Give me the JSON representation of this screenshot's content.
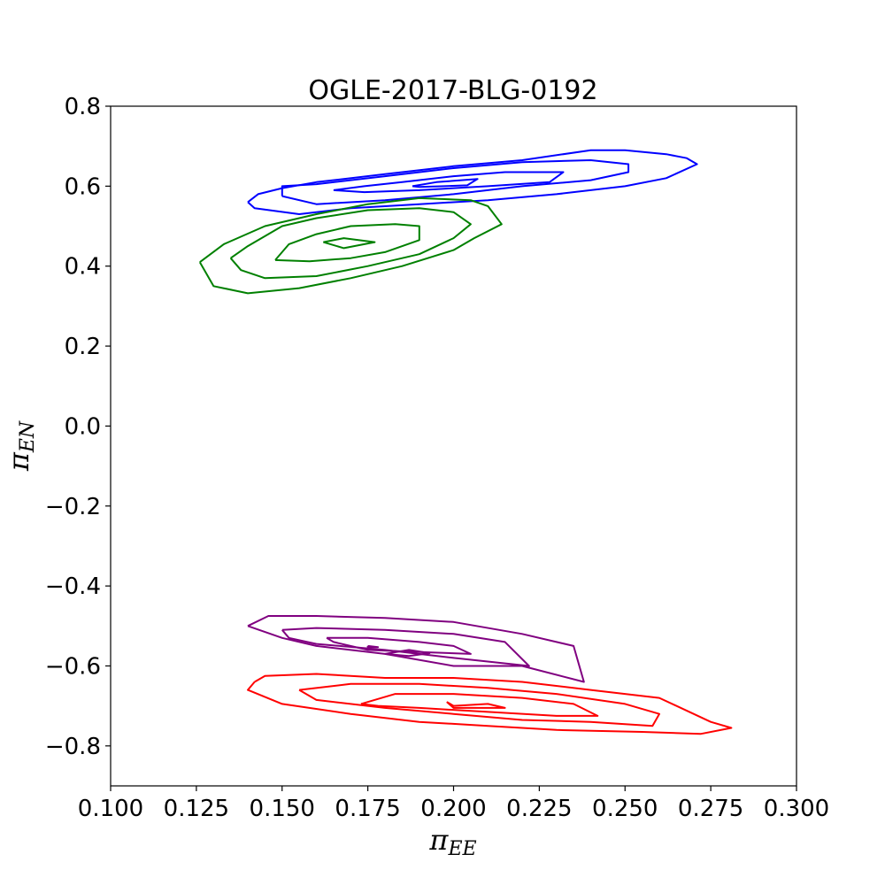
{
  "chart_data": {
    "type": "contour",
    "title": "OGLE-2017-BLG-0192",
    "xlabel": {
      "base": "π",
      "sub": "EE"
    },
    "ylabel": {
      "base": "π",
      "sub": "EN"
    },
    "xlim": [
      0.1,
      0.3
    ],
    "ylim": [
      -0.9,
      0.8
    ],
    "x_ticks": [
      0.1,
      0.125,
      0.15,
      0.175,
      0.2,
      0.225,
      0.25,
      0.275,
      0.3
    ],
    "x_tick_labels": [
      "0.100",
      "0.125",
      "0.150",
      "0.175",
      "0.200",
      "0.225",
      "0.250",
      "0.275",
      "0.300"
    ],
    "y_ticks": [
      -0.8,
      -0.6,
      -0.4,
      -0.2,
      0.0,
      0.2,
      0.4,
      0.6,
      0.8
    ],
    "y_tick_labels": [
      "−0.8",
      "−0.6",
      "−0.4",
      "−0.2",
      "0.0",
      "0.2",
      "0.4",
      "0.6",
      "0.8"
    ],
    "grid": false,
    "series": [
      {
        "color": "#0000ff",
        "contours": [
          [
            [
              0.14,
              0.56
            ],
            [
              0.143,
              0.58
            ],
            [
              0.15,
              0.595
            ],
            [
              0.16,
              0.61
            ],
            [
              0.18,
              0.63
            ],
            [
              0.2,
              0.65
            ],
            [
              0.22,
              0.665
            ],
            [
              0.24,
              0.69
            ],
            [
              0.25,
              0.69
            ],
            [
              0.262,
              0.68
            ],
            [
              0.268,
              0.67
            ],
            [
              0.271,
              0.655
            ],
            [
              0.262,
              0.62
            ],
            [
              0.25,
              0.6
            ],
            [
              0.23,
              0.58
            ],
            [
              0.21,
              0.565
            ],
            [
              0.19,
              0.555
            ],
            [
              0.17,
              0.545
            ],
            [
              0.155,
              0.53
            ],
            [
              0.142,
              0.545
            ],
            [
              0.14,
              0.56
            ]
          ],
          [
            [
              0.15,
              0.575
            ],
            [
              0.15,
              0.6
            ],
            [
              0.16,
              0.605
            ],
            [
              0.18,
              0.625
            ],
            [
              0.2,
              0.645
            ],
            [
              0.22,
              0.66
            ],
            [
              0.24,
              0.665
            ],
            [
              0.251,
              0.655
            ],
            [
              0.251,
              0.635
            ],
            [
              0.24,
              0.615
            ],
            [
              0.22,
              0.6
            ],
            [
              0.2,
              0.58
            ],
            [
              0.18,
              0.565
            ],
            [
              0.16,
              0.555
            ],
            [
              0.15,
              0.575
            ]
          ],
          [
            [
              0.165,
              0.59
            ],
            [
              0.174,
              0.6
            ],
            [
              0.185,
              0.61
            ],
            [
              0.2,
              0.625
            ],
            [
              0.215,
              0.635
            ],
            [
              0.232,
              0.635
            ],
            [
              0.228,
              0.61
            ],
            [
              0.21,
              0.6
            ],
            [
              0.19,
              0.59
            ],
            [
              0.174,
              0.585
            ],
            [
              0.165,
              0.59
            ]
          ],
          [
            [
              0.188,
              0.6
            ],
            [
              0.195,
              0.61
            ],
            [
              0.207,
              0.618
            ],
            [
              0.204,
              0.602
            ],
            [
              0.19,
              0.598
            ],
            [
              0.188,
              0.6
            ]
          ]
        ]
      },
      {
        "color": "#008000",
        "contours": [
          [
            [
              0.126,
              0.41
            ],
            [
              0.133,
              0.455
            ],
            [
              0.145,
              0.5
            ],
            [
              0.16,
              0.53
            ],
            [
              0.175,
              0.555
            ],
            [
              0.19,
              0.57
            ],
            [
              0.205,
              0.565
            ],
            [
              0.21,
              0.55
            ],
            [
              0.214,
              0.505
            ],
            [
              0.206,
              0.47
            ],
            [
              0.2,
              0.44
            ],
            [
              0.185,
              0.4
            ],
            [
              0.17,
              0.37
            ],
            [
              0.155,
              0.345
            ],
            [
              0.14,
              0.332
            ],
            [
              0.13,
              0.35
            ],
            [
              0.126,
              0.41
            ]
          ],
          [
            [
              0.135,
              0.42
            ],
            [
              0.14,
              0.45
            ],
            [
              0.15,
              0.5
            ],
            [
              0.16,
              0.52
            ],
            [
              0.175,
              0.54
            ],
            [
              0.19,
              0.545
            ],
            [
              0.2,
              0.535
            ],
            [
              0.205,
              0.505
            ],
            [
              0.2,
              0.47
            ],
            [
              0.19,
              0.43
            ],
            [
              0.175,
              0.4
            ],
            [
              0.16,
              0.375
            ],
            [
              0.145,
              0.37
            ],
            [
              0.138,
              0.39
            ],
            [
              0.135,
              0.42
            ]
          ],
          [
            [
              0.148,
              0.415
            ],
            [
              0.152,
              0.455
            ],
            [
              0.16,
              0.48
            ],
            [
              0.17,
              0.5
            ],
            [
              0.183,
              0.505
            ],
            [
              0.19,
              0.5
            ],
            [
              0.19,
              0.465
            ],
            [
              0.18,
              0.435
            ],
            [
              0.17,
              0.42
            ],
            [
              0.158,
              0.412
            ],
            [
              0.148,
              0.415
            ]
          ],
          [
            [
              0.162,
              0.46
            ],
            [
              0.168,
              0.47
            ],
            [
              0.177,
              0.46
            ],
            [
              0.168,
              0.445
            ],
            [
              0.162,
              0.46
            ]
          ]
        ]
      },
      {
        "color": "#800080",
        "contours": [
          [
            [
              0.14,
              -0.5
            ],
            [
              0.146,
              -0.475
            ],
            [
              0.16,
              -0.475
            ],
            [
              0.18,
              -0.48
            ],
            [
              0.2,
              -0.49
            ],
            [
              0.22,
              -0.52
            ],
            [
              0.235,
              -0.55
            ],
            [
              0.238,
              -0.64
            ],
            [
              0.22,
              -0.6
            ],
            [
              0.2,
              -0.6
            ],
            [
              0.18,
              -0.57
            ],
            [
              0.16,
              -0.55
            ],
            [
              0.15,
              -0.53
            ],
            [
              0.14,
              -0.5
            ]
          ],
          [
            [
              0.15,
              -0.51
            ],
            [
              0.16,
              -0.505
            ],
            [
              0.18,
              -0.51
            ],
            [
              0.2,
              -0.52
            ],
            [
              0.215,
              -0.54
            ],
            [
              0.222,
              -0.6
            ],
            [
              0.2,
              -0.58
            ],
            [
              0.18,
              -0.56
            ],
            [
              0.16,
              -0.545
            ],
            [
              0.152,
              -0.53
            ],
            [
              0.15,
              -0.51
            ]
          ],
          [
            [
              0.163,
              -0.53
            ],
            [
              0.175,
              -0.53
            ],
            [
              0.19,
              -0.54
            ],
            [
              0.2,
              -0.55
            ],
            [
              0.205,
              -0.57
            ],
            [
              0.19,
              -0.565
            ],
            [
              0.175,
              -0.56
            ],
            [
              0.165,
              -0.54
            ],
            [
              0.163,
              -0.53
            ]
          ],
          [
            [
              0.175,
              -0.55
            ],
            [
              0.178,
              -0.553
            ],
            [
              0.175,
              -0.553
            ],
            [
              0.175,
              -0.55
            ]
          ],
          [
            [
              0.18,
              -0.57
            ],
            [
              0.187,
              -0.56
            ],
            [
              0.193,
              -0.568
            ],
            [
              0.187,
              -0.575
            ],
            [
              0.18,
              -0.57
            ]
          ]
        ]
      },
      {
        "color": "#ff0000",
        "contours": [
          [
            [
              0.142,
              -0.64
            ],
            [
              0.145,
              -0.625
            ],
            [
              0.16,
              -0.62
            ],
            [
              0.18,
              -0.63
            ],
            [
              0.2,
              -0.63
            ],
            [
              0.22,
              -0.64
            ],
            [
              0.24,
              -0.66
            ],
            [
              0.26,
              -0.68
            ],
            [
              0.275,
              -0.74
            ],
            [
              0.281,
              -0.755
            ],
            [
              0.272,
              -0.77
            ],
            [
              0.255,
              -0.765
            ],
            [
              0.23,
              -0.76
            ],
            [
              0.21,
              -0.75
            ],
            [
              0.19,
              -0.74
            ],
            [
              0.17,
              -0.72
            ],
            [
              0.15,
              -0.695
            ],
            [
              0.14,
              -0.66
            ],
            [
              0.142,
              -0.64
            ]
          ],
          [
            [
              0.155,
              -0.66
            ],
            [
              0.17,
              -0.645
            ],
            [
              0.19,
              -0.645
            ],
            [
              0.21,
              -0.655
            ],
            [
              0.23,
              -0.67
            ],
            [
              0.25,
              -0.695
            ],
            [
              0.26,
              -0.72
            ],
            [
              0.258,
              -0.75
            ],
            [
              0.24,
              -0.74
            ],
            [
              0.22,
              -0.735
            ],
            [
              0.2,
              -0.72
            ],
            [
              0.18,
              -0.705
            ],
            [
              0.16,
              -0.685
            ],
            [
              0.155,
              -0.66
            ]
          ],
          [
            [
              0.173,
              -0.695
            ],
            [
              0.183,
              -0.67
            ],
            [
              0.2,
              -0.67
            ],
            [
              0.22,
              -0.68
            ],
            [
              0.235,
              -0.695
            ],
            [
              0.242,
              -0.725
            ],
            [
              0.23,
              -0.725
            ],
            [
              0.21,
              -0.715
            ],
            [
              0.19,
              -0.705
            ],
            [
              0.178,
              -0.7
            ],
            [
              0.173,
              -0.695
            ]
          ],
          [
            [
              0.198,
              -0.69
            ],
            [
              0.2,
              -0.705
            ],
            [
              0.215,
              -0.705
            ],
            [
              0.21,
              -0.695
            ],
            [
              0.2,
              -0.7
            ],
            [
              0.198,
              -0.69
            ]
          ]
        ]
      }
    ]
  }
}
